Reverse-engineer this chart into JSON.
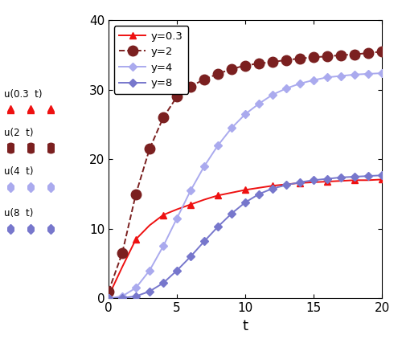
{
  "xlabel": "t",
  "xlim": [
    0,
    20
  ],
  "ylim": [
    0,
    40
  ],
  "xticks": [
    0,
    5,
    10,
    15,
    20
  ],
  "yticks": [
    0,
    10,
    20,
    30,
    40
  ],
  "series": [
    {
      "label": "y=0.3",
      "color": "#EE1111",
      "linestyle": "-",
      "marker": "^",
      "markersize": 6,
      "linewidth": 1.4,
      "markevery": 2,
      "t": [
        0,
        1,
        2,
        3,
        4,
        5,
        6,
        7,
        8,
        9,
        10,
        11,
        12,
        13,
        14,
        15,
        16,
        17,
        18,
        19,
        20
      ],
      "u": [
        0.3,
        4.5,
        8.5,
        10.5,
        12.0,
        12.8,
        13.5,
        14.2,
        14.8,
        15.2,
        15.6,
        15.9,
        16.2,
        16.4,
        16.6,
        16.7,
        16.8,
        16.9,
        17.0,
        17.0,
        17.1
      ]
    },
    {
      "label": "y=2",
      "color": "#7B2020",
      "linestyle": "--",
      "marker": "o",
      "markersize": 9,
      "linewidth": 1.4,
      "markevery": 1,
      "t": [
        0,
        1,
        2,
        3,
        4,
        5,
        6,
        7,
        8,
        9,
        10,
        11,
        12,
        13,
        14,
        15,
        16,
        17,
        18,
        19,
        20
      ],
      "u": [
        1.0,
        6.5,
        15.0,
        21.5,
        26.0,
        29.0,
        30.5,
        31.5,
        32.3,
        33.0,
        33.5,
        33.8,
        34.0,
        34.3,
        34.5,
        34.7,
        34.8,
        35.0,
        35.1,
        35.3,
        35.5
      ]
    },
    {
      "label": "y=4",
      "color": "#AAAAEE",
      "linestyle": "-",
      "marker": "D",
      "markersize": 5,
      "linewidth": 1.4,
      "markevery": 1,
      "t": [
        0,
        1,
        2,
        3,
        4,
        5,
        6,
        7,
        8,
        9,
        10,
        11,
        12,
        13,
        14,
        15,
        16,
        17,
        18,
        19,
        20
      ],
      "u": [
        0.0,
        0.3,
        1.5,
        4.0,
        7.5,
        11.5,
        15.5,
        19.0,
        22.0,
        24.5,
        26.5,
        28.0,
        29.3,
        30.2,
        30.9,
        31.4,
        31.8,
        32.0,
        32.2,
        32.3,
        32.4
      ]
    },
    {
      "label": "y=8",
      "color": "#7777CC",
      "linestyle": "-",
      "marker": "D",
      "markersize": 5,
      "linewidth": 1.4,
      "markevery": 1,
      "t": [
        0,
        1,
        2,
        3,
        4,
        5,
        6,
        7,
        8,
        9,
        10,
        11,
        12,
        13,
        14,
        15,
        16,
        17,
        18,
        19,
        20
      ],
      "u": [
        0.0,
        0.05,
        0.3,
        1.0,
        2.2,
        4.0,
        6.0,
        8.2,
        10.3,
        12.2,
        13.8,
        15.0,
        15.8,
        16.3,
        16.7,
        17.0,
        17.2,
        17.4,
        17.5,
        17.6,
        17.7
      ]
    }
  ],
  "left_annotations": [
    {
      "text": "u(0.3  t)",
      "color": "#EE1111",
      "marker": "^",
      "markersize": 7
    },
    {
      "text": "u(2  t)",
      "color": "#7B2020",
      "marker": "o",
      "markersize": 9
    },
    {
      "text": "u(4  t)",
      "color": "#AAAAEE",
      "marker": "D",
      "markersize": 6
    },
    {
      "text": "u(8  t)",
      "color": "#7777CC",
      "marker": "D",
      "markersize": 6
    }
  ],
  "figsize": [
    5.0,
    4.22
  ],
  "dpi": 100
}
